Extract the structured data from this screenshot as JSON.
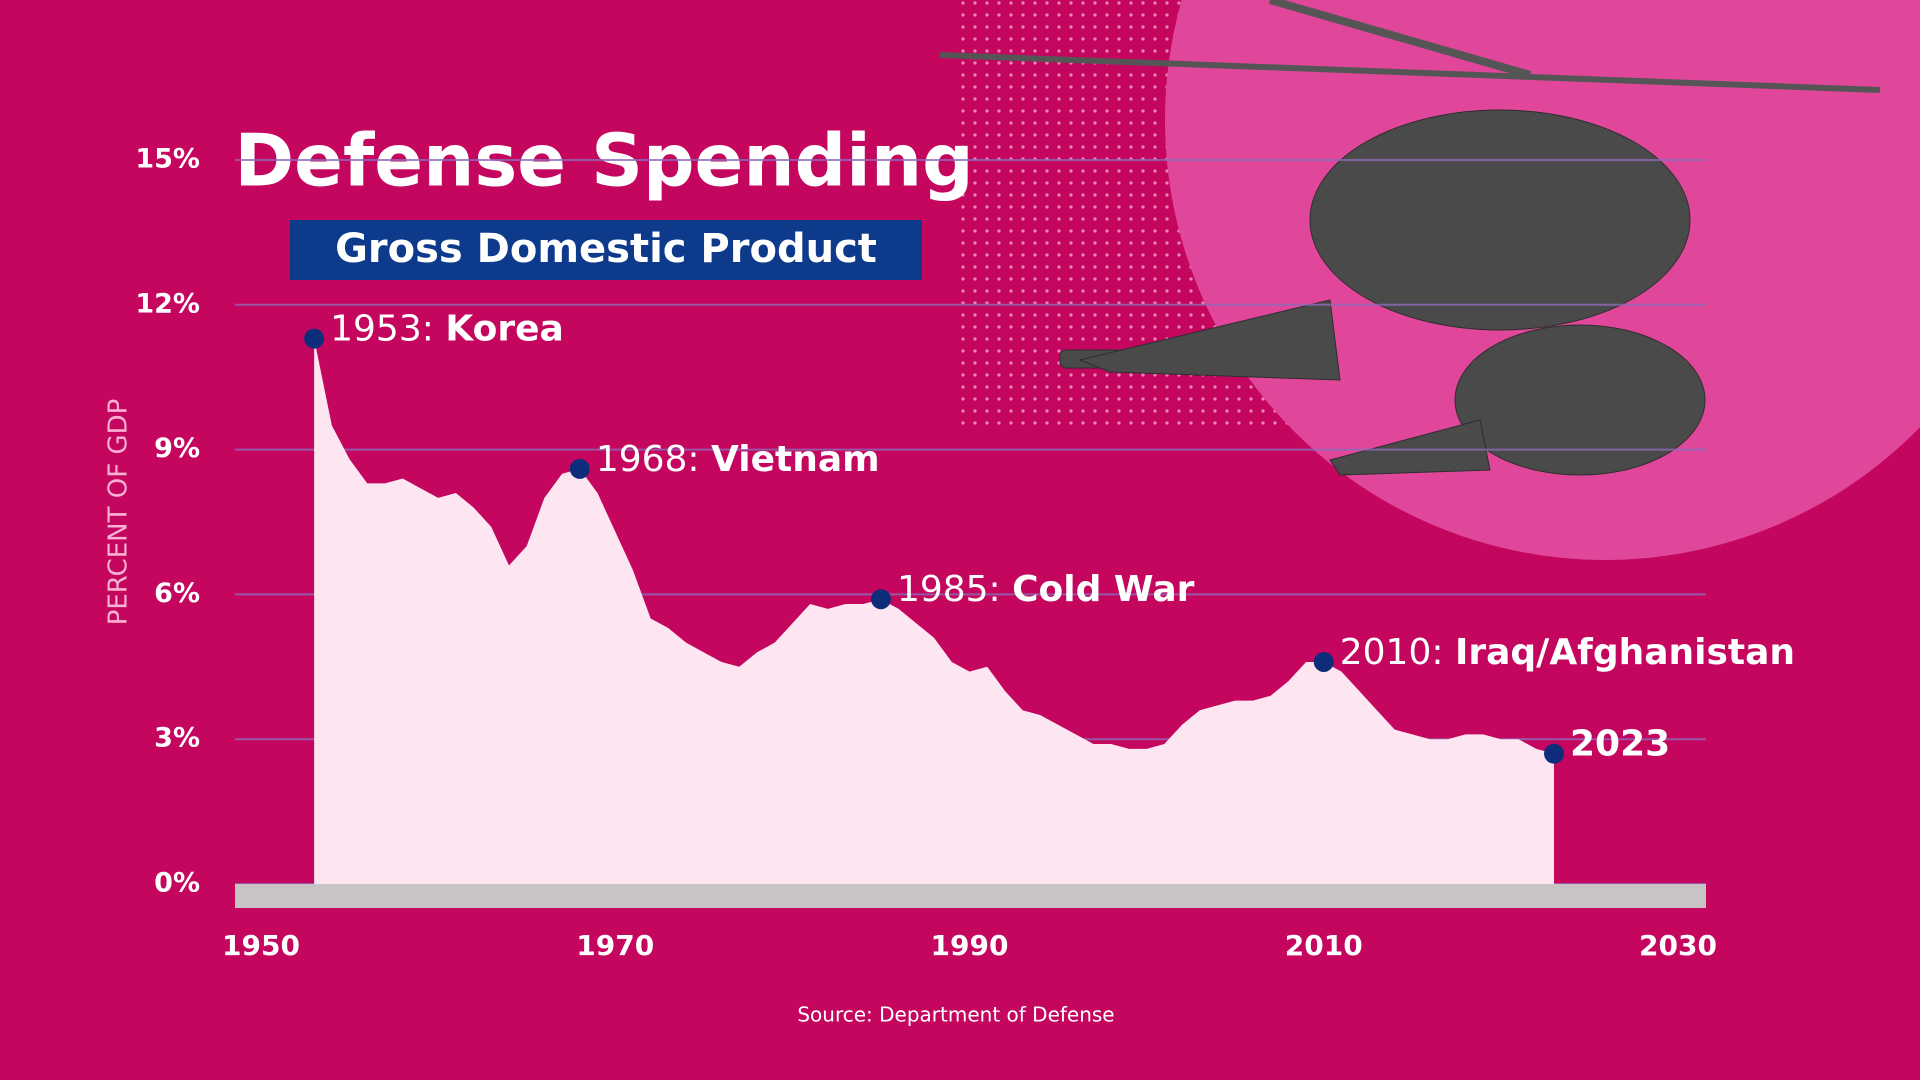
{
  "chart_data": {
    "type": "area",
    "title": "Defense Spending",
    "subtitle": "Gross Domestic Product",
    "y_label": "PERCENT OF GDP",
    "source": "Source: Department of Defense",
    "x": [
      1953,
      1954,
      1955,
      1956,
      1957,
      1958,
      1959,
      1960,
      1961,
      1962,
      1963,
      1964,
      1965,
      1966,
      1967,
      1968,
      1969,
      1970,
      1971,
      1972,
      1973,
      1974,
      1975,
      1976,
      1977,
      1978,
      1979,
      1980,
      1981,
      1982,
      1983,
      1984,
      1985,
      1986,
      1987,
      1988,
      1989,
      1990,
      1991,
      1992,
      1993,
      1994,
      1995,
      1996,
      1997,
      1998,
      1999,
      2000,
      2001,
      2002,
      2003,
      2004,
      2005,
      2006,
      2007,
      2008,
      2009,
      2010,
      2011,
      2012,
      2013,
      2014,
      2015,
      2016,
      2017,
      2018,
      2019,
      2020,
      2021,
      2022,
      2023
    ],
    "values": [
      11.3,
      9.5,
      8.8,
      8.3,
      8.3,
      8.4,
      8.2,
      8.0,
      8.1,
      7.8,
      7.4,
      6.6,
      7.0,
      8.0,
      8.5,
      8.6,
      8.1,
      7.3,
      6.5,
      5.5,
      5.3,
      5.0,
      4.8,
      4.6,
      4.5,
      4.8,
      5.0,
      5.4,
      5.8,
      5.7,
      5.8,
      5.8,
      5.9,
      5.7,
      5.4,
      5.1,
      4.6,
      4.4,
      4.5,
      4.0,
      3.6,
      3.5,
      3.3,
      3.1,
      2.9,
      2.9,
      2.8,
      2.8,
      2.9,
      3.3,
      3.6,
      3.7,
      3.8,
      3.8,
      3.9,
      4.2,
      4.6,
      4.6,
      4.4,
      4.0,
      3.6,
      3.2,
      3.1,
      3.0,
      3.0,
      3.1,
      3.1,
      3.0,
      3.0,
      2.8,
      2.7
    ],
    "color": "#fde6f2",
    "marker_color": "#0d2d7a",
    "xlim": [
      1950,
      2030
    ],
    "xticks": [
      1950,
      1970,
      1990,
      2010,
      2030
    ],
    "ylim": [
      0,
      15
    ],
    "yticks": [
      {
        "value": 0,
        "label": "0%"
      },
      {
        "value": 3,
        "label": "3%"
      },
      {
        "value": 6,
        "label": "6%"
      },
      {
        "value": 9,
        "label": "9%"
      },
      {
        "value": 12,
        "label": "12%"
      },
      {
        "value": 15,
        "label": "15%"
      }
    ],
    "grid": true,
    "annotations": [
      {
        "x": 1953,
        "x_label": "1953:",
        "label": "Korea"
      },
      {
        "x": 1968,
        "x_label": "1968:",
        "label": "Vietnam"
      },
      {
        "x": 1985,
        "x_label": "1985:",
        "label": "Cold War"
      },
      {
        "x": 2010,
        "x_label": "2010:",
        "label": "Iraq/Afghanistan"
      },
      {
        "x": 2023,
        "label": "2023"
      }
    ]
  }
}
